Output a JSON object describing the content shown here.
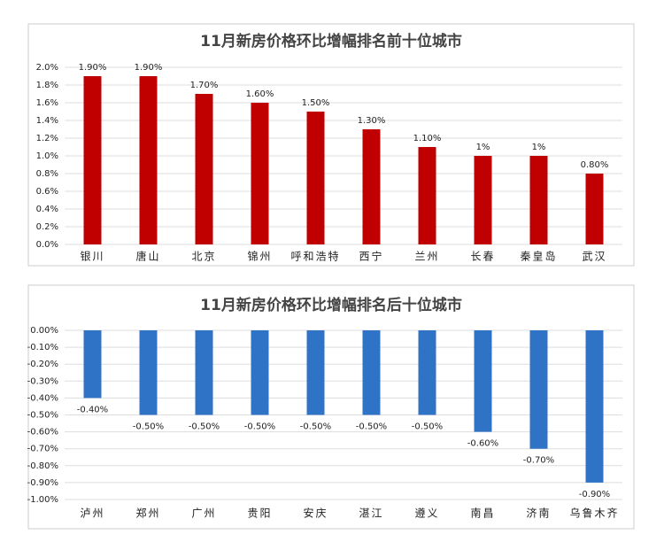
{
  "chart_data": [
    {
      "type": "bar",
      "title": "11月新房价格环比增幅排名前十位城市",
      "categories": [
        "银川",
        "唐山",
        "北京",
        "锦州",
        "呼和浩特",
        "西宁",
        "兰州",
        "长春",
        "秦皇岛",
        "武汉"
      ],
      "values": [
        1.9,
        1.9,
        1.7,
        1.6,
        1.5,
        1.3,
        1.1,
        1,
        1,
        0.8
      ],
      "value_labels": [
        "1.90%",
        "1.90%",
        "1.70%",
        "1.60%",
        "1.50%",
        "1.30%",
        "1.10%",
        "1%",
        "1%",
        "0.80%"
      ],
      "color": "#c00000",
      "ylim": [
        0,
        2.0
      ],
      "yticks": [
        {
          "value": 0,
          "label": "0.0%"
        },
        {
          "value": 0.2,
          "label": "0.2%"
        },
        {
          "value": 0.4,
          "label": "0.4%"
        },
        {
          "value": 0.6,
          "label": "0.6%"
        },
        {
          "value": 0.8,
          "label": "0.8%"
        },
        {
          "value": 1.0,
          "label": "1.0%"
        },
        {
          "value": 1.2,
          "label": "1.2%"
        },
        {
          "value": 1.4,
          "label": "1.4%"
        },
        {
          "value": 1.6,
          "label": "1.6%"
        },
        {
          "value": 1.8,
          "label": "1.8%"
        },
        {
          "value": 2.0,
          "label": "2.0%"
        }
      ],
      "grid": true
    },
    {
      "type": "bar",
      "title": "11月新房价格环比增幅排名后十位城市",
      "categories": [
        "泸州",
        "郑州",
        "广州",
        "贵阳",
        "安庆",
        "湛江",
        "遵义",
        "南昌",
        "济南",
        "乌鲁木齐"
      ],
      "values": [
        -0.4,
        -0.5,
        -0.5,
        -0.5,
        -0.5,
        -0.5,
        -0.5,
        -0.6,
        -0.7,
        -0.9
      ],
      "value_labels": [
        "-0.40%",
        "-0.50%",
        "-0.50%",
        "-0.50%",
        "-0.50%",
        "-0.50%",
        "-0.50%",
        "-0.60%",
        "-0.70%",
        "-0.90%"
      ],
      "color": "#2f73c6",
      "ylim": [
        -1.0,
        0
      ],
      "yticks": [
        {
          "value": 0,
          "label": "0.00%"
        },
        {
          "value": -0.1,
          "label": "-0.10%"
        },
        {
          "value": -0.2,
          "label": "-0.20%"
        },
        {
          "value": -0.3,
          "label": "-0.30%"
        },
        {
          "value": -0.4,
          "label": "-0.40%"
        },
        {
          "value": -0.5,
          "label": "-0.50%"
        },
        {
          "value": -0.6,
          "label": "-0.60%"
        },
        {
          "value": -0.7,
          "label": "-0.70%"
        },
        {
          "value": -0.8,
          "label": "-0.80%"
        },
        {
          "value": -0.9,
          "label": "-0.90%"
        },
        {
          "value": -1.0,
          "label": "-1.00%"
        }
      ],
      "grid": true
    }
  ]
}
